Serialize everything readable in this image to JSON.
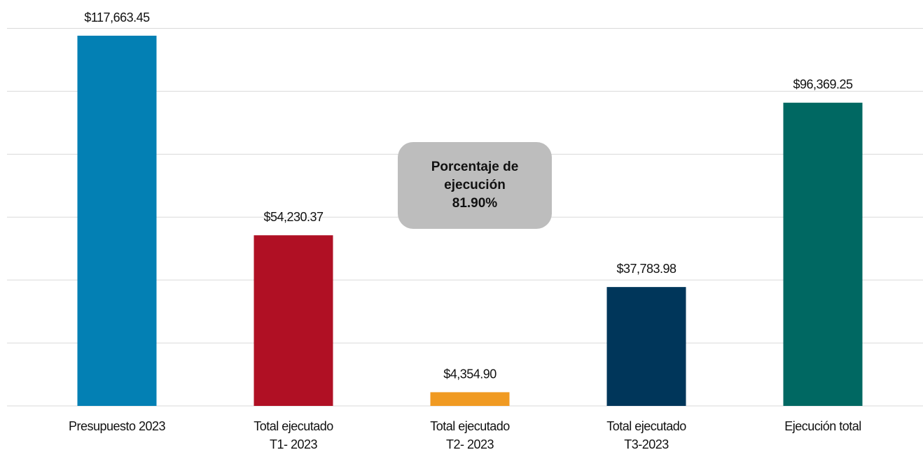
{
  "chart_data": {
    "type": "bar",
    "categories": [
      "Presupuesto 2023",
      "Total ejecutado\nT1- 2023",
      "Total ejecutado\nT2- 2023",
      "Total ejecutado\nT3-2023",
      "Ejecución total"
    ],
    "values": [
      117663.45,
      54230.37,
      4354.9,
      37783.98,
      96369.25
    ],
    "value_labels": [
      "$117,663.45",
      "$54,230.37",
      "$4,354.90",
      "$37,783.98",
      "$96,369.25"
    ],
    "colors": [
      "#0380b4",
      "#b01024",
      "#f09a22",
      "#00365a",
      "#006862"
    ],
    "ylim": [
      0,
      120000
    ],
    "yticks": [
      0,
      20000,
      40000,
      60000,
      80000,
      100000,
      120000
    ],
    "grid": true,
    "annotation": "Porcentaje de\nejecución\n81.90%"
  }
}
